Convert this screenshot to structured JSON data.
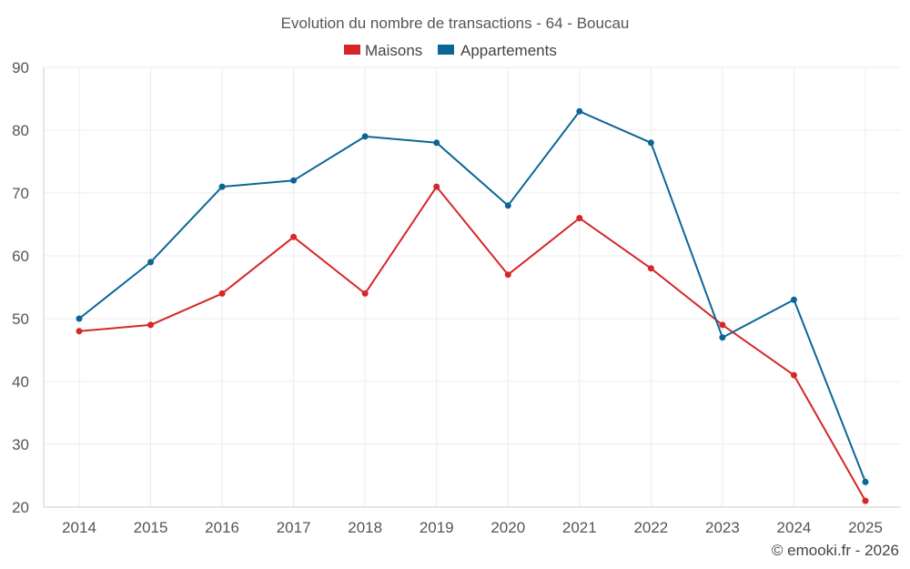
{
  "chart_data": {
    "type": "line",
    "title": "Evolution du nombre de transactions - 64 - Boucau",
    "xlabel": "",
    "ylabel": "",
    "ylim": [
      20,
      90
    ],
    "yticks": [
      20,
      30,
      40,
      50,
      60,
      70,
      80,
      90
    ],
    "categories": [
      "2014",
      "2015",
      "2016",
      "2017",
      "2018",
      "2019",
      "2020",
      "2021",
      "2022",
      "2023",
      "2024",
      "2025"
    ],
    "series": [
      {
        "name": "Maisons",
        "color": "#d62728",
        "values": [
          48,
          49,
          54,
          63,
          54,
          71,
          57,
          66,
          58,
          49,
          41,
          21
        ]
      },
      {
        "name": "Appartements",
        "color": "#0b6696",
        "values": [
          50,
          59,
          71,
          72,
          79,
          78,
          68,
          83,
          78,
          47,
          53,
          24
        ]
      }
    ],
    "legend": "top-center",
    "grid": true
  },
  "credit": "© emooki.fr - 2026"
}
